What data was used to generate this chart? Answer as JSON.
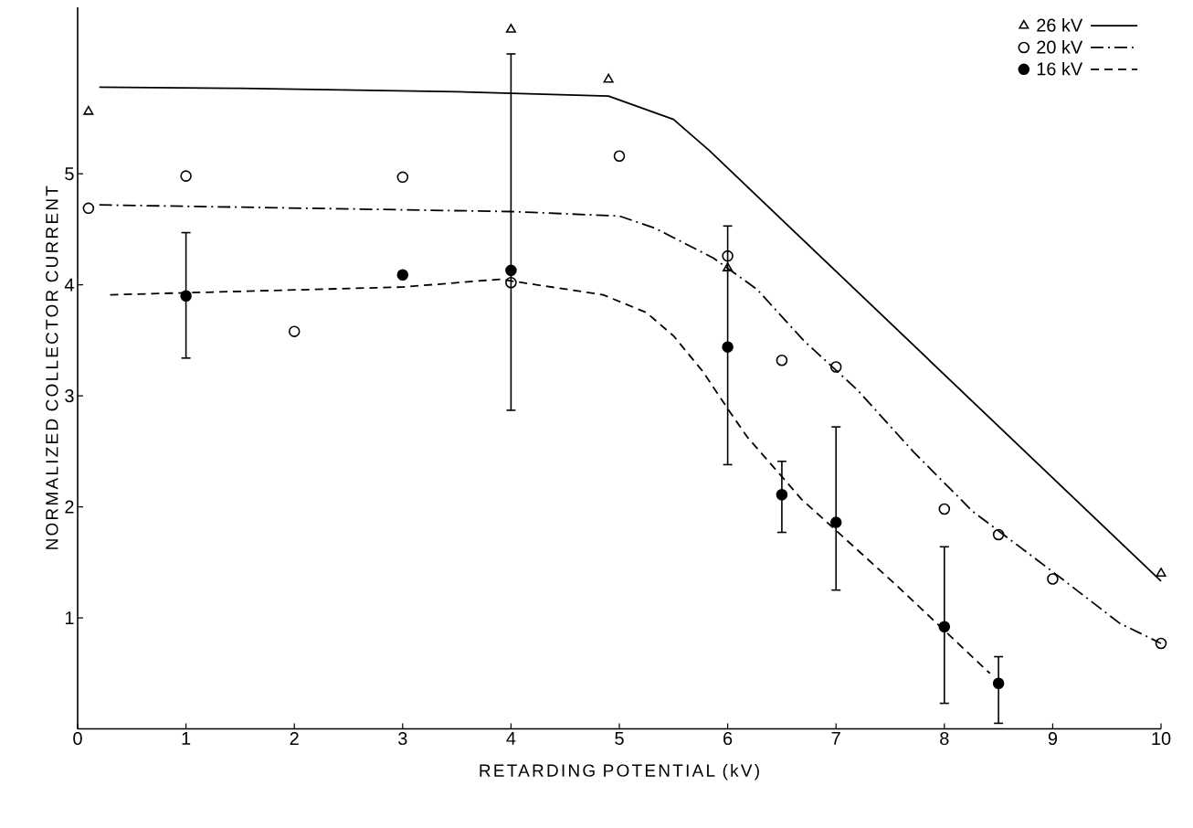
{
  "chart_data": {
    "type": "scatter",
    "xlabel": "RETARDING POTENTIAL (kV)",
    "ylabel": "NORMALIZED COLLECTOR CURRENT",
    "xlim": [
      0,
      10
    ],
    "ylim": [
      0,
      6.5
    ],
    "xticks": [
      0,
      1,
      2,
      3,
      4,
      5,
      6,
      7,
      8,
      9,
      10
    ],
    "yticks": [
      1,
      2,
      3,
      4,
      5
    ],
    "grid": false,
    "legend": "top right",
    "series": [
      {
        "name": "26 kV",
        "marker": "triangle",
        "color": "#000000",
        "x": [
          0.1,
          4,
          4.9,
          6,
          10
        ],
        "values": [
          5.56,
          6.3,
          5.85,
          4.15,
          1.4
        ]
      },
      {
        "type": "line",
        "line_style": "solid",
        "marker": "none",
        "color": "#000000",
        "x": [
          0.2,
          1.5,
          3.5,
          4.9,
          5.5,
          5.83,
          10
        ],
        "values": [
          5.78,
          5.77,
          5.74,
          5.7,
          5.49,
          5.21,
          1.33
        ]
      },
      {
        "name": "20 kV",
        "marker": "circle",
        "color": "#000000",
        "x": [
          0.1,
          1,
          2,
          3,
          4,
          5,
          6,
          6.5,
          7,
          8,
          8.5,
          9,
          10
        ],
        "values": [
          4.69,
          4.98,
          3.58,
          4.97,
          4.02,
          5.16,
          4.26,
          3.32,
          3.26,
          1.98,
          1.75,
          1.35,
          0.77
        ]
      },
      {
        "type": "line",
        "line_style": "dashdot",
        "marker": "none",
        "color": "#000000",
        "x": [
          0.2,
          4,
          5,
          5.33,
          5.87,
          6.27,
          6.7,
          7.2,
          7.72,
          8.26,
          8.98,
          9.62,
          10
        ],
        "values": [
          4.72,
          4.66,
          4.62,
          4.51,
          4.24,
          3.96,
          3.5,
          3.05,
          2.49,
          1.96,
          1.43,
          0.95,
          0.77
        ]
      },
      {
        "name": "16 kV",
        "marker": "filled circle",
        "color": "#000000",
        "x": [
          1,
          3,
          4,
          6,
          6.5,
          7,
          8,
          8.5
        ],
        "values": [
          3.9,
          4.09,
          4.13,
          3.44,
          2.11,
          1.86,
          0.92,
          0.41
        ],
        "errors": [
          [
            3.34,
            4.47
          ],
          null,
          [
            2.87,
            6.08
          ],
          [
            2.38,
            4.53
          ],
          [
            1.77,
            2.41
          ],
          [
            1.25,
            2.72
          ],
          [
            0.23,
            1.64
          ],
          [
            0.05,
            0.65
          ]
        ]
      },
      {
        "type": "line",
        "line_style": "dashed",
        "marker": "none",
        "color": "#000000",
        "x": [
          0.3,
          3,
          3.9,
          4.85,
          5.25,
          5.5,
          5.77,
          6.01,
          6.18,
          6.68,
          7.55,
          8.42
        ],
        "values": [
          3.91,
          3.98,
          4.05,
          3.91,
          3.75,
          3.54,
          3.22,
          2.87,
          2.63,
          2.07,
          1.3,
          0.5
        ]
      }
    ]
  }
}
